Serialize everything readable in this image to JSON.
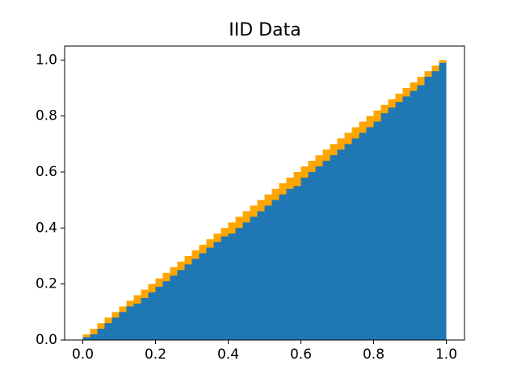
{
  "chart_data": {
    "type": "histogram",
    "title": "IID Data",
    "bins": [
      0,
      0.02,
      0.04,
      0.06,
      0.08,
      0.1,
      0.12,
      0.14,
      0.16,
      0.18,
      0.2,
      0.22,
      0.24,
      0.26,
      0.28,
      0.3,
      0.32,
      0.34,
      0.36,
      0.38,
      0.4,
      0.42,
      0.44,
      0.46,
      0.48,
      0.5,
      0.52,
      0.54,
      0.56,
      0.58,
      0.6,
      0.62,
      0.64,
      0.66,
      0.68,
      0.7,
      0.72,
      0.74,
      0.76,
      0.78,
      0.8,
      0.82,
      0.84,
      0.86,
      0.88,
      0.9,
      0.92,
      0.94,
      0.96,
      0.98,
      1
    ],
    "series": [
      {
        "color": "#ffa500",
        "values": [
          0.02,
          0.04,
          0.06,
          0.08,
          0.1,
          0.12,
          0.14,
          0.16,
          0.18,
          0.2,
          0.22,
          0.24,
          0.26,
          0.28,
          0.3,
          0.32,
          0.34,
          0.36,
          0.38,
          0.4,
          0.42,
          0.44,
          0.46,
          0.48,
          0.5,
          0.52,
          0.54,
          0.56,
          0.58,
          0.6,
          0.62,
          0.64,
          0.66,
          0.68,
          0.7,
          0.72,
          0.74,
          0.76,
          0.78,
          0.8,
          0.82,
          0.84,
          0.86,
          0.88,
          0.9,
          0.92,
          0.94,
          0.96,
          0.98,
          1
        ]
      },
      {
        "color": "#1f77b4",
        "values": [
          0.01,
          0.02,
          0.04,
          0.06,
          0.08,
          0.1,
          0.12,
          0.13,
          0.15,
          0.17,
          0.19,
          0.21,
          0.23,
          0.25,
          0.27,
          0.29,
          0.31,
          0.33,
          0.35,
          0.37,
          0.38,
          0.4,
          0.42,
          0.44,
          0.46,
          0.48,
          0.5,
          0.52,
          0.54,
          0.55,
          0.58,
          0.6,
          0.62,
          0.64,
          0.66,
          0.68,
          0.7,
          0.72,
          0.74,
          0.76,
          0.78,
          0.81,
          0.83,
          0.85,
          0.87,
          0.89,
          0.91,
          0.94,
          0.96,
          0.99
        ]
      }
    ],
    "xlim": [
      -0.05,
      1.05
    ],
    "ylim": [
      0,
      1.05
    ],
    "xticks": [
      {
        "value": 0,
        "label": "0.0"
      },
      0.2,
      0.4,
      0.6,
      0.8,
      {
        "value": 1,
        "label": "1.0"
      }
    ],
    "yticks": [
      {
        "value": 0,
        "label": "0.0"
      },
      0.2,
      0.4,
      0.6,
      0.8,
      {
        "value": 1,
        "label": "1.0"
      }
    ]
  }
}
